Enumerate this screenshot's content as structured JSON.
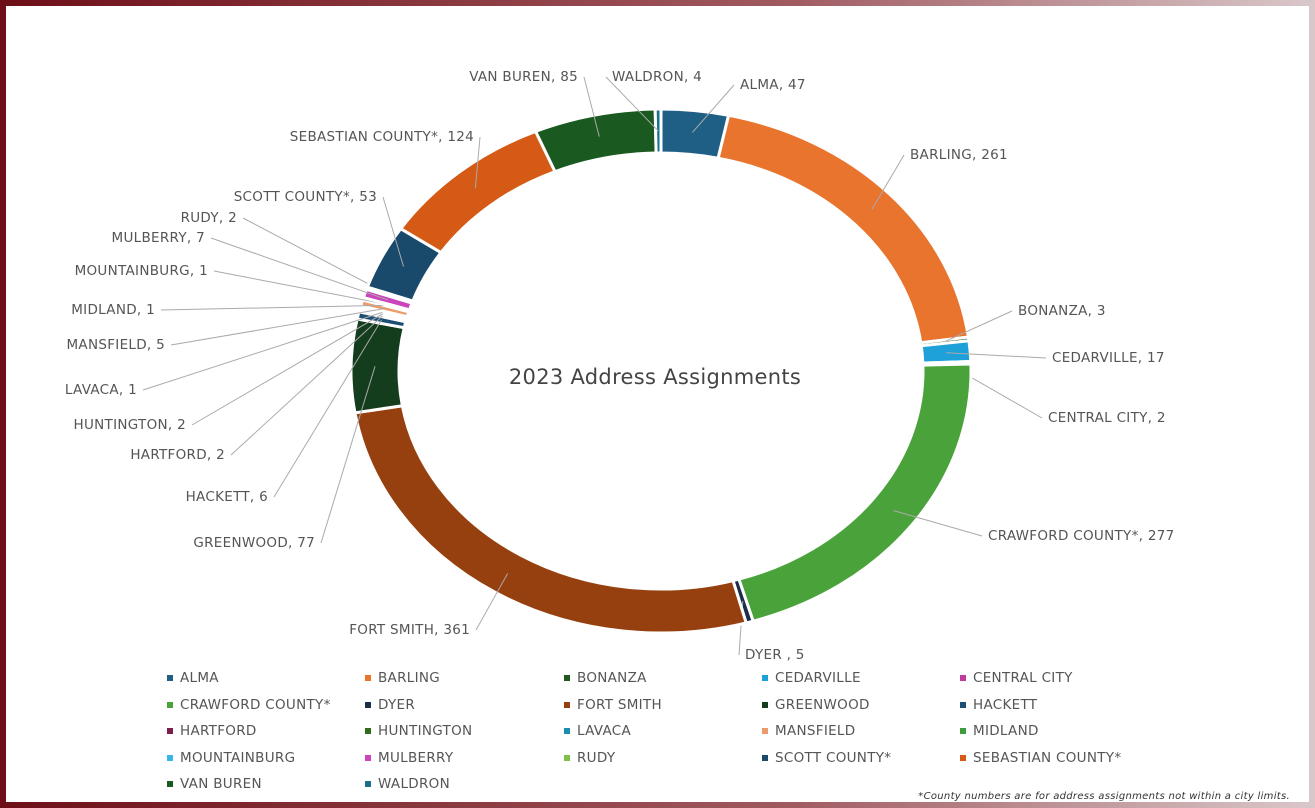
{
  "chart_data": {
    "type": "donut",
    "title": "2023 Address Assignments",
    "categories": [
      "ALMA",
      "BARLING",
      "BONANZA",
      "CEDARVILLE",
      "CENTRAL CITY",
      "CRAWFORD COUNTY*",
      "DYER",
      "FORT SMITH",
      "GREENWOOD",
      "HACKETT",
      "HARTFORD",
      "HUNTINGTON",
      "LAVACA",
      "MANSFIELD",
      "MIDLAND",
      "MOUNTAINBURG",
      "MULBERRY",
      "RUDY",
      "SCOTT  COUNTY*",
      "SEBASTIAN COUNTY*",
      "VAN BUREN",
      "WALDRON"
    ],
    "values": [
      47,
      261,
      3,
      17,
      2,
      277,
      5,
      361,
      77,
      6,
      2,
      2,
      1,
      5,
      1,
      1,
      7,
      2,
      53,
      124,
      85,
      4
    ],
    "value_labels": [
      "ALMA, 47",
      "BARLING, 261",
      "BONANZA, 3",
      "CEDARVILLE, 17",
      "CENTRAL CITY, 2",
      "CRAWFORD COUNTY*, 277",
      "DYER , 5",
      "FORT SMITH, 361",
      "GREENWOOD, 77",
      "HACKETT, 6",
      "HARTFORD, 2",
      "HUNTINGTON, 2",
      "LAVACA, 1",
      "MANSFIELD, 5",
      "MIDLAND, 1",
      "MOUNTAINBURG, 1",
      "MULBERRY, 7",
      "RUDY, 2",
      "SCOTT  COUNTY*, 53",
      "SEBASTIAN COUNTY*, 124",
      "VAN BUREN, 85",
      "WALDRON, 4"
    ],
    "colors": [
      "#1f5f85",
      "#e8742e",
      "#1e5a1e",
      "#1ea0d8",
      "#c0399c",
      "#4aa33a",
      "#1b2e4a",
      "#97400f",
      "#143d1e",
      "#1c4f73",
      "#7a1f4a",
      "#2f6b1d",
      "#1c8fb0",
      "#eb9a6b",
      "#3e9b3e",
      "#38b6e8",
      "#cc44bb",
      "#7dc246",
      "#1a4a6b",
      "#d45a16",
      "#1a5a20",
      "#1a6f8f"
    ],
    "footnote": "*County numbers are for address assignments not within a city limits."
  }
}
